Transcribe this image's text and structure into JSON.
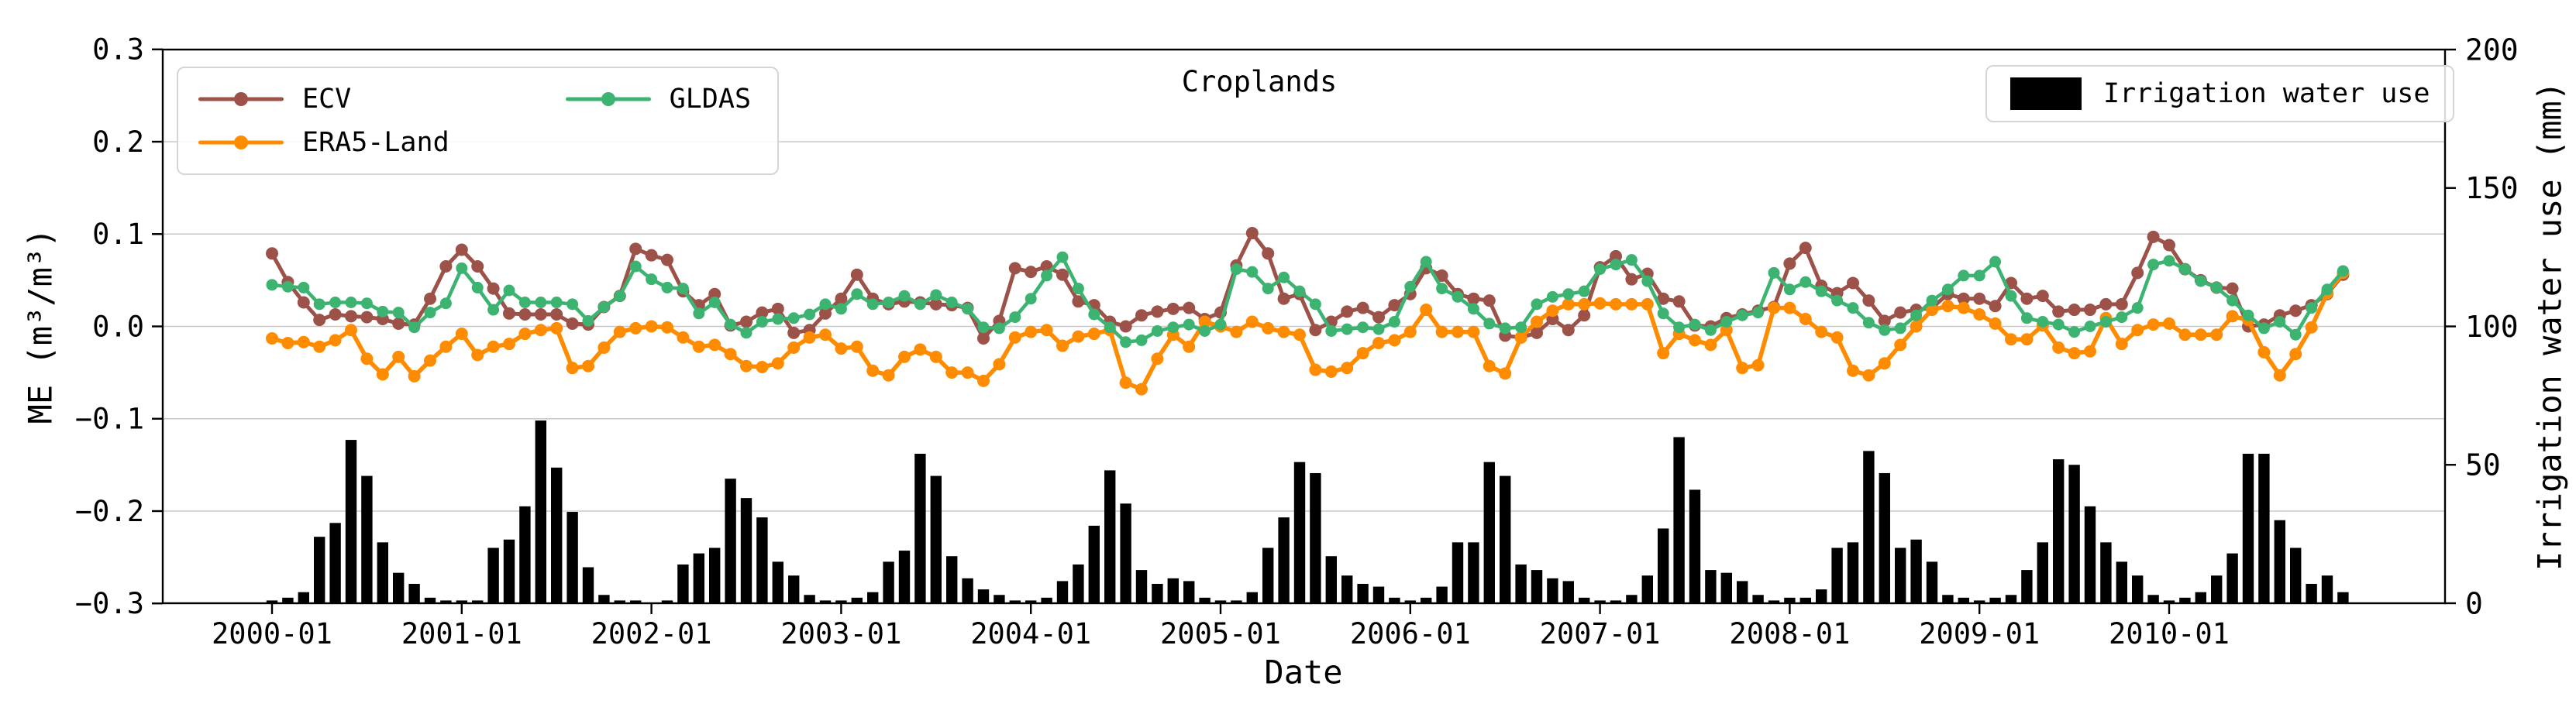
{
  "title": "Croplands",
  "xlabel": "Date",
  "ylabel_left": "ME (m³/m³)",
  "ylabel_right": "Irrigation water use (mm)",
  "legend_lines": {
    "items": [
      {
        "label": "ECV",
        "color": "#9C5248"
      },
      {
        "label": "ERA5-Land",
        "color": "#FF8C00"
      },
      {
        "label": "GLDAS",
        "color": "#3CB371"
      }
    ]
  },
  "legend_bars": {
    "label": "Irrigation water use",
    "color": "#000000"
  },
  "colors": {
    "ecv": "#9C5248",
    "era5_land": "#FF8C00",
    "gldas": "#3CB371",
    "bars": "#000000",
    "grid": "#c8c8c8",
    "spine": "#000000"
  },
  "chart_data": {
    "type": "line+bar",
    "title": "Croplands",
    "x_axis_label": "Date",
    "x_start": "2000-01",
    "x_end": "2010-12",
    "n_months": 132,
    "x_tick_labels": [
      "2000-01",
      "2001-01",
      "2002-01",
      "2003-01",
      "2004-01",
      "2005-01",
      "2006-01",
      "2007-01",
      "2008-01",
      "2009-01",
      "2010-01"
    ],
    "x_tick_month_index": [
      0,
      12,
      24,
      36,
      48,
      60,
      72,
      84,
      96,
      108,
      120
    ],
    "ylim_left": [
      -0.3,
      0.3
    ],
    "ylabel_left": "ME (m³/m³)",
    "yticks_left": [
      {
        "v": 0.3,
        "label": "0.3"
      },
      {
        "v": 0.2,
        "label": "0.2"
      },
      {
        "v": 0.1,
        "label": "0.1"
      },
      {
        "v": 0.0,
        "label": "0.0"
      },
      {
        "v": -0.1,
        "label": "−0.1"
      },
      {
        "v": -0.2,
        "label": "−0.2"
      },
      {
        "v": -0.3,
        "label": "−0.3"
      }
    ],
    "ylim_right": [
      0,
      200
    ],
    "ylabel_right": "Irrigation water use (mm)",
    "yticks_right": [
      {
        "v": 200,
        "label": "200"
      },
      {
        "v": 150,
        "label": "150"
      },
      {
        "v": 100,
        "label": "100"
      },
      {
        "v": 50,
        "label": "50"
      },
      {
        "v": 0,
        "label": "0"
      }
    ],
    "grid": "horizontal",
    "legend_line_position": "upper left",
    "legend_bar_position": "upper right",
    "series": [
      {
        "name": "ECV",
        "axis": "left",
        "color": "#9C5248",
        "marker": "circle",
        "values": [
          0.079,
          0.048,
          0.026,
          0.007,
          0.013,
          0.011,
          0.01,
          0.008,
          0.003,
          0.002,
          0.03,
          0.065,
          0.083,
          0.065,
          0.041,
          0.014,
          0.013,
          0.013,
          0.013,
          0.003,
          0.002,
          0.021,
          0.033,
          0.084,
          0.077,
          0.072,
          0.038,
          0.023,
          0.035,
          0.001,
          0.005,
          0.015,
          0.019,
          -0.007,
          -0.004,
          0.014,
          0.03,
          0.056,
          0.03,
          0.024,
          0.027,
          0.026,
          0.024,
          0.023,
          0.02,
          -0.013,
          0.006,
          0.063,
          0.059,
          0.065,
          0.056,
          0.027,
          0.023,
          0.005,
          0.0,
          0.012,
          0.016,
          0.019,
          0.02,
          0.008,
          0.015,
          0.066,
          0.101,
          0.079,
          0.03,
          0.035,
          -0.004,
          0.005,
          0.016,
          0.02,
          0.01,
          0.023,
          0.035,
          0.063,
          0.055,
          0.035,
          0.03,
          0.028,
          -0.01,
          -0.012,
          -0.007,
          0.008,
          -0.004,
          0.012,
          0.064,
          0.076,
          0.051,
          0.057,
          0.03,
          0.027,
          0.001,
          0.0,
          0.009,
          0.013,
          0.017,
          0.021,
          0.068,
          0.085,
          0.044,
          0.036,
          0.047,
          0.028,
          0.006,
          0.015,
          0.018,
          0.02,
          0.035,
          0.03,
          0.03,
          0.022,
          0.047,
          0.03,
          0.033,
          0.016,
          0.018,
          0.018,
          0.024,
          0.024,
          0.058,
          0.097,
          0.088,
          0.062,
          0.05,
          0.042,
          0.041,
          0.0,
          0.002,
          0.012,
          0.017,
          0.023,
          0.035,
          0.056
        ]
      },
      {
        "name": "ERA5-Land",
        "axis": "left",
        "color": "#FF8C00",
        "marker": "circle",
        "values": [
          -0.013,
          -0.018,
          -0.017,
          -0.022,
          -0.015,
          -0.004,
          -0.035,
          -0.052,
          -0.033,
          -0.054,
          -0.037,
          -0.022,
          -0.008,
          -0.031,
          -0.022,
          -0.019,
          -0.008,
          -0.004,
          -0.002,
          -0.045,
          -0.043,
          -0.023,
          -0.006,
          -0.002,
          0.0,
          -0.001,
          -0.012,
          -0.022,
          -0.02,
          -0.03,
          -0.043,
          -0.044,
          -0.04,
          -0.023,
          -0.012,
          -0.009,
          -0.024,
          -0.022,
          -0.048,
          -0.053,
          -0.033,
          -0.025,
          -0.033,
          -0.05,
          -0.05,
          -0.059,
          -0.041,
          -0.012,
          -0.006,
          -0.004,
          -0.021,
          -0.011,
          -0.008,
          -0.004,
          -0.061,
          -0.068,
          -0.035,
          -0.009,
          -0.022,
          0.005,
          0.0,
          -0.006,
          0.005,
          -0.002,
          -0.006,
          -0.009,
          -0.047,
          -0.049,
          -0.045,
          -0.029,
          -0.018,
          -0.015,
          -0.006,
          0.018,
          -0.006,
          -0.006,
          -0.006,
          -0.043,
          -0.051,
          -0.012,
          0.005,
          0.017,
          0.024,
          0.024,
          0.025,
          0.024,
          0.024,
          0.024,
          -0.029,
          -0.008,
          -0.015,
          -0.02,
          -0.004,
          -0.045,
          -0.042,
          0.02,
          0.02,
          0.008,
          -0.006,
          -0.012,
          -0.048,
          -0.053,
          -0.04,
          -0.02,
          0.0,
          0.018,
          0.022,
          0.02,
          0.013,
          0.003,
          -0.014,
          -0.014,
          0.001,
          -0.023,
          -0.029,
          -0.027,
          0.009,
          -0.019,
          -0.004,
          0.002,
          0.003,
          -0.009,
          -0.009,
          -0.009,
          0.011,
          0.007,
          -0.028,
          -0.053,
          -0.03,
          -0.001,
          0.036,
          0.058
        ]
      },
      {
        "name": "GLDAS",
        "axis": "left",
        "color": "#3CB371",
        "marker": "circle",
        "values": [
          0.045,
          0.043,
          0.042,
          0.024,
          0.026,
          0.026,
          0.025,
          0.016,
          0.015,
          -0.001,
          0.015,
          0.025,
          0.063,
          0.042,
          0.018,
          0.039,
          0.026,
          0.026,
          0.026,
          0.024,
          0.006,
          0.021,
          0.033,
          0.065,
          0.051,
          0.042,
          0.041,
          0.014,
          0.026,
          0.002,
          -0.007,
          0.005,
          0.008,
          0.009,
          0.013,
          0.024,
          0.019,
          0.035,
          0.024,
          0.026,
          0.033,
          0.024,
          0.034,
          0.026,
          0.019,
          -0.001,
          -0.002,
          0.01,
          0.03,
          0.055,
          0.075,
          0.041,
          0.013,
          -0.001,
          -0.017,
          -0.015,
          -0.005,
          -0.001,
          0.002,
          -0.005,
          0.002,
          0.062,
          0.059,
          0.041,
          0.053,
          0.038,
          0.024,
          -0.005,
          -0.003,
          -0.001,
          -0.003,
          0.005,
          0.043,
          0.07,
          0.041,
          0.032,
          0.019,
          0.003,
          -0.002,
          -0.001,
          0.024,
          0.032,
          0.035,
          0.038,
          0.062,
          0.067,
          0.072,
          0.049,
          0.014,
          -0.001,
          0.002,
          -0.004,
          0.005,
          0.012,
          0.015,
          0.058,
          0.04,
          0.048,
          0.038,
          0.028,
          0.02,
          0.004,
          -0.004,
          -0.002,
          0.012,
          0.028,
          0.04,
          0.055,
          0.055,
          0.07,
          0.033,
          0.009,
          0.005,
          0.002,
          -0.006,
          0.0,
          0.005,
          0.01,
          0.02,
          0.067,
          0.071,
          0.062,
          0.049,
          0.042,
          0.028,
          0.012,
          -0.002,
          0.005,
          -0.009,
          0.02,
          0.04,
          0.06
        ]
      }
    ],
    "bars": {
      "name": "Irrigation water use",
      "axis": "right",
      "color": "#000000",
      "values": [
        1,
        2,
        4,
        24,
        29,
        59,
        46,
        22,
        11,
        7,
        2,
        1,
        1,
        1,
        20,
        23,
        35,
        66,
        49,
        33,
        13,
        3,
        1,
        1,
        0,
        1,
        14,
        18,
        20,
        45,
        38,
        31,
        15,
        10,
        3,
        1,
        1,
        2,
        4,
        15,
        19,
        54,
        46,
        17,
        9,
        5,
        3,
        1,
        1,
        2,
        8,
        14,
        28,
        48,
        36,
        12,
        7,
        9,
        8,
        2,
        1,
        1,
        4,
        20,
        31,
        51,
        47,
        17,
        10,
        7,
        6,
        2,
        1,
        2,
        6,
        22,
        22,
        51,
        46,
        14,
        12,
        9,
        8,
        2,
        1,
        1,
        3,
        10,
        27,
        60,
        41,
        12,
        11,
        8,
        3,
        1,
        2,
        2,
        5,
        20,
        22,
        55,
        47,
        20,
        23,
        15,
        3,
        2,
        1,
        2,
        3,
        12,
        22,
        52,
        50,
        35,
        22,
        15,
        10,
        3,
        1,
        2,
        4,
        10,
        18,
        54,
        54,
        30,
        20,
        7,
        10,
        4
      ]
    }
  }
}
